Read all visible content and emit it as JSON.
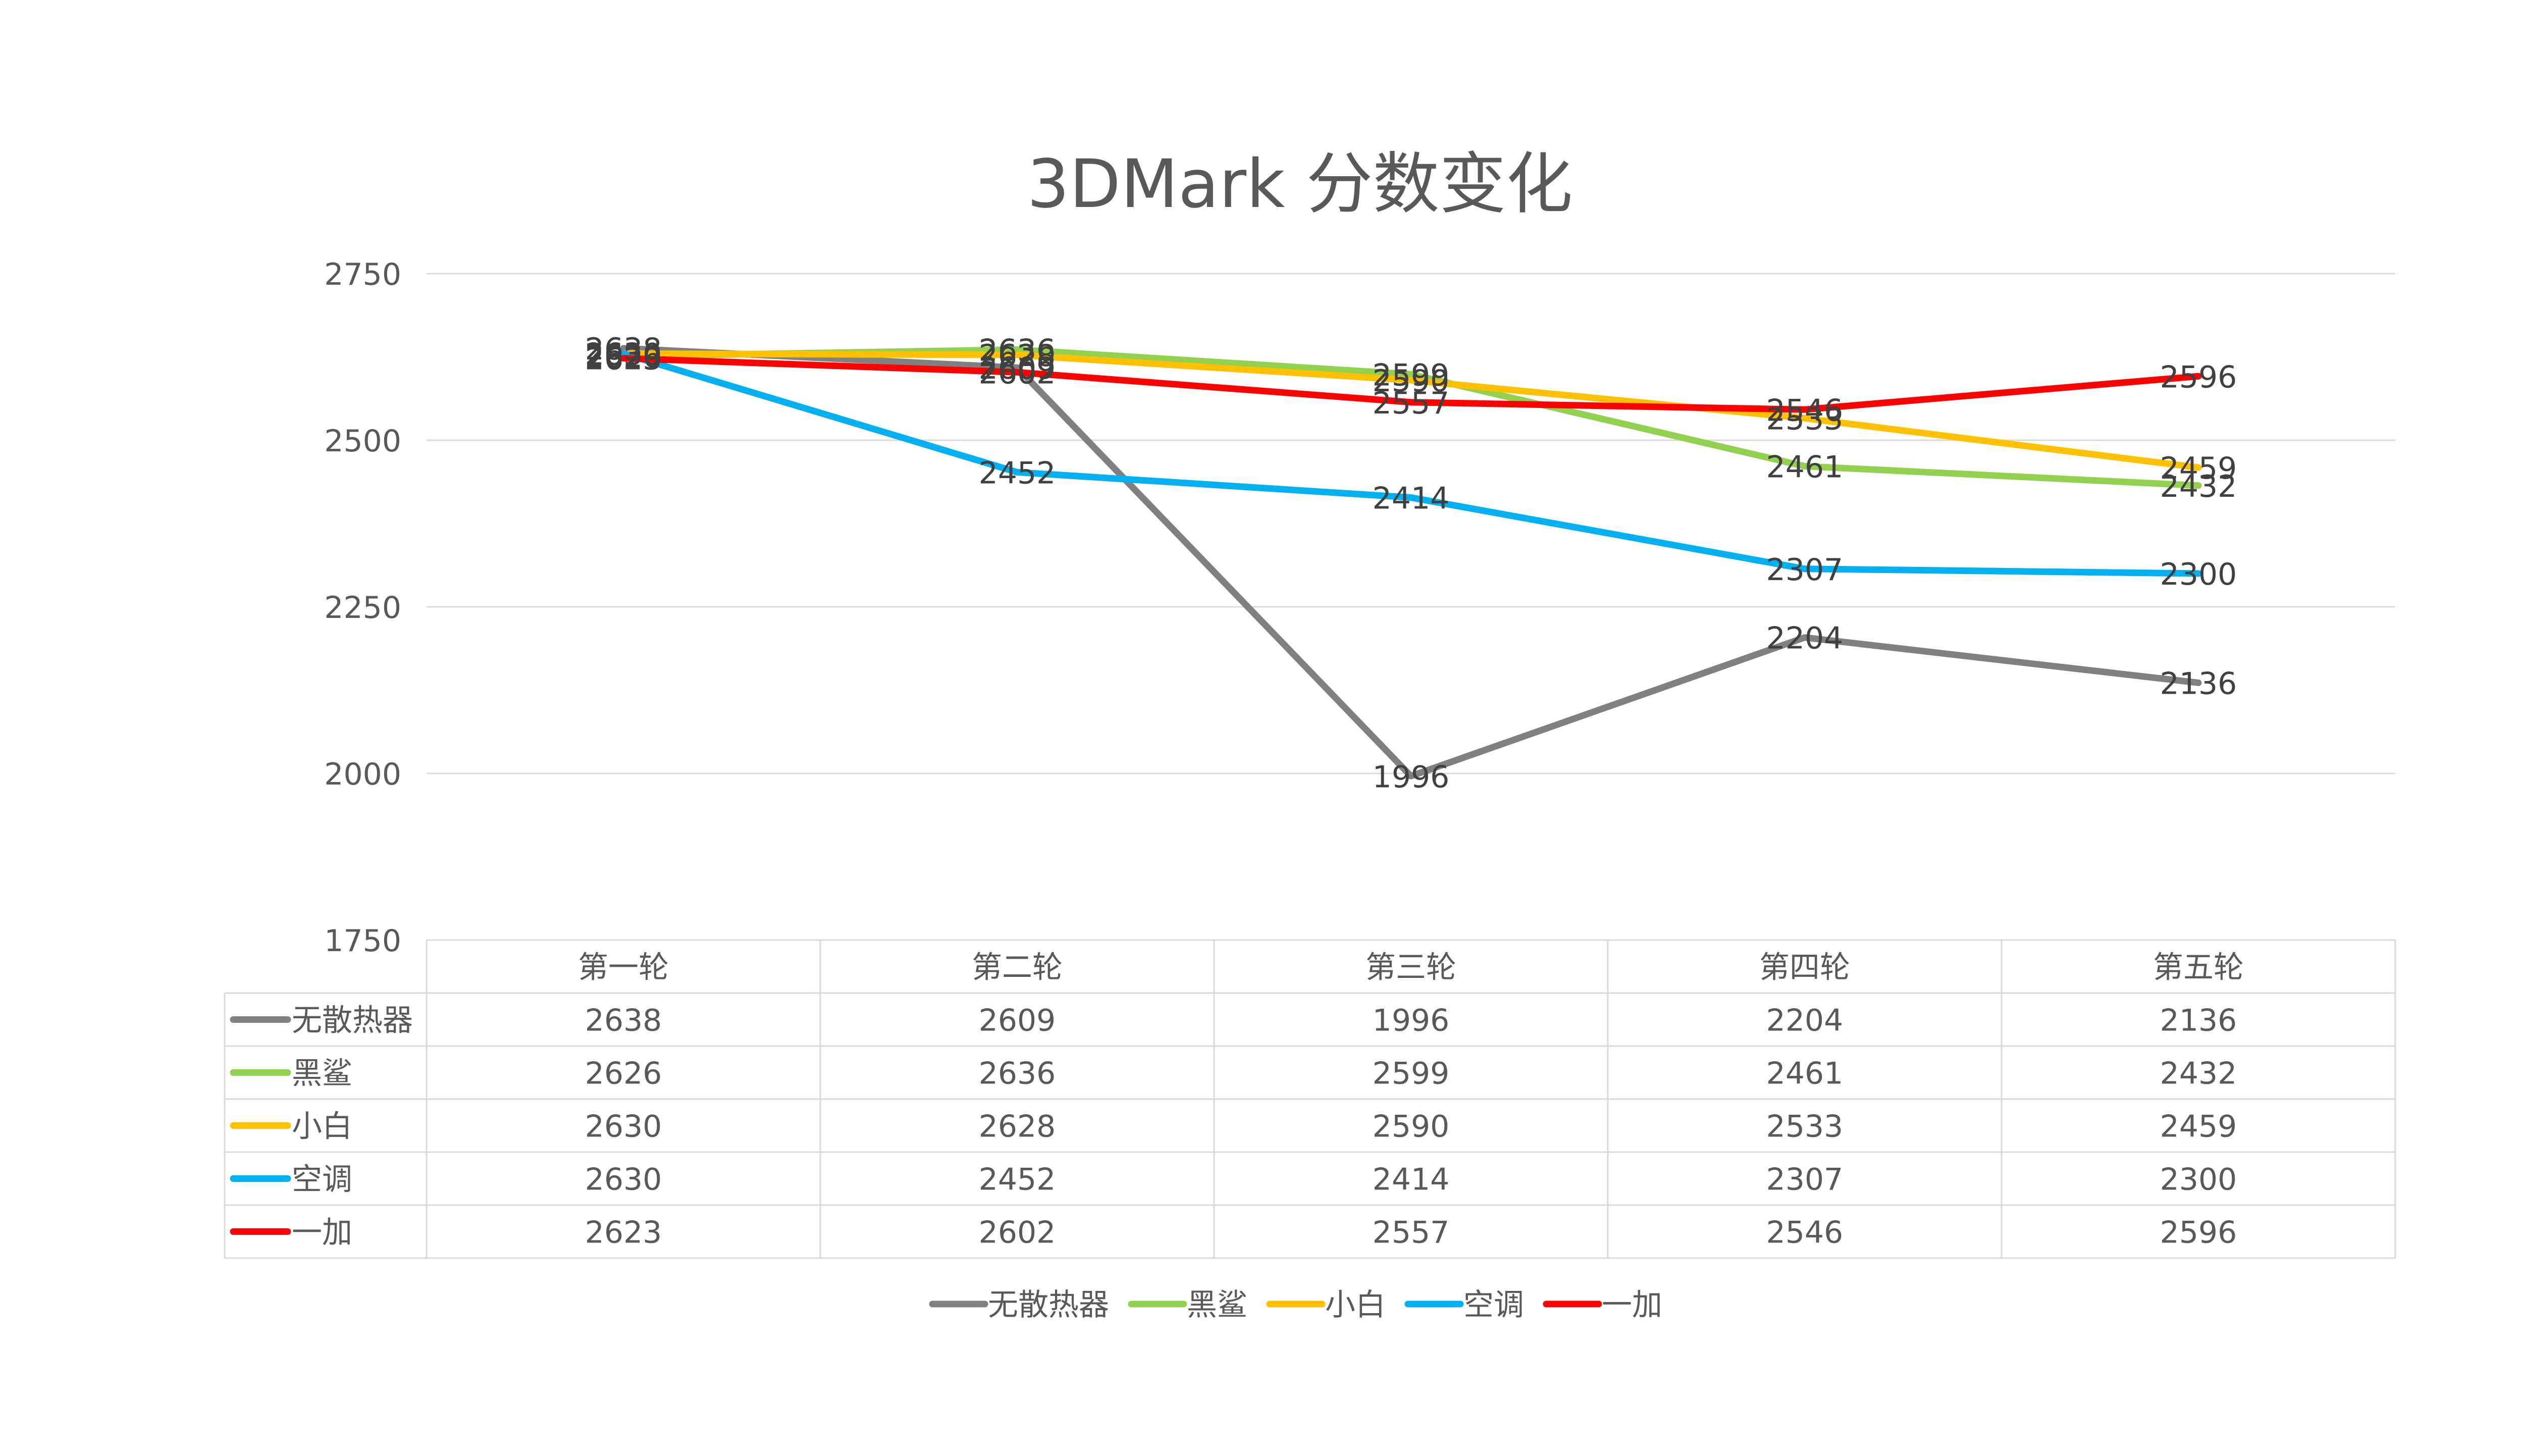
{
  "chart_data": {
    "type": "line",
    "title": "3DMark 分数变化",
    "xlabel": "",
    "ylabel": "",
    "categories": [
      "第一轮",
      "第二轮",
      "第三轮",
      "第四轮",
      "第五轮"
    ],
    "ylim": [
      1750,
      2750
    ],
    "yticks": [
      1750,
      2000,
      2250,
      2500,
      2750
    ],
    "grid": true,
    "legend_position": "bottom",
    "data_table": true,
    "series": [
      {
        "name": "无散热器",
        "color": "#808080",
        "values": [
          2638,
          2609,
          1996,
          2204,
          2136
        ]
      },
      {
        "name": "黑鲨",
        "color": "#92D050",
        "values": [
          2626,
          2636,
          2599,
          2461,
          2432
        ]
      },
      {
        "name": "小白",
        "color": "#FFC000",
        "values": [
          2630,
          2628,
          2590,
          2533,
          2459
        ]
      },
      {
        "name": "空调",
        "color": "#00B0F0",
        "values": [
          2630,
          2452,
          2414,
          2307,
          2300
        ]
      },
      {
        "name": "一加",
        "color": "#FF0000",
        "values": [
          2623,
          2602,
          2557,
          2546,
          2596
        ]
      }
    ]
  }
}
